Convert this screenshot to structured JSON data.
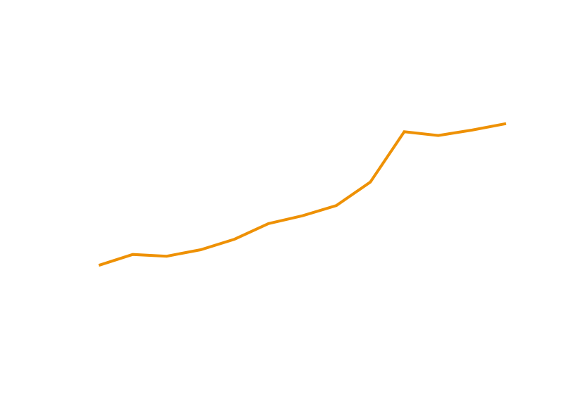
{
  "chart_data": {
    "type": "line",
    "title": "",
    "xlabel": "",
    "ylabel": "",
    "x": [
      1,
      2,
      3,
      4,
      5,
      6,
      7,
      8,
      9,
      10,
      11,
      12,
      13
    ],
    "series": [
      {
        "values": [
          30.0,
          33.2,
          32.7,
          34.6,
          37.7,
          42.3,
          44.6,
          47.6,
          54.5,
          69.3,
          68.2,
          69.8,
          71.7
        ],
        "color": "#ee9105"
      }
    ],
    "xlim": [
      0,
      14
    ],
    "ylim": [
      5,
      100
    ],
    "axes_visible": false,
    "grid": false,
    "legend": "none"
  }
}
